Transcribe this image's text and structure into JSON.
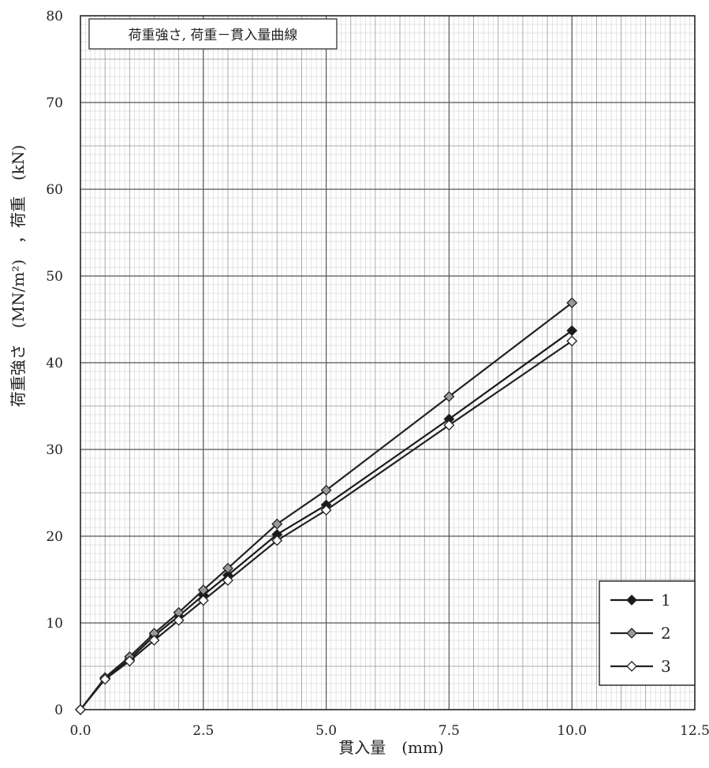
{
  "chart_data": {
    "type": "line",
    "title": "荷重強さ, 荷重－貫入量曲線",
    "xlabel": "貫入量　(mm)",
    "ylabel": "荷重強さ　(MN/m²)　，荷重　(kN)",
    "xlim": [
      0,
      12.5
    ],
    "ylim": [
      0,
      80
    ],
    "x_ticks": [
      "0.0",
      "2.5",
      "5.0",
      "7.5",
      "10.0",
      "12.5"
    ],
    "y_ticks": [
      "0",
      "10",
      "20",
      "30",
      "40",
      "50",
      "60",
      "70",
      "80"
    ],
    "grid": true,
    "legend_position": "bottom-right",
    "x": [
      0,
      0.5,
      1.0,
      1.5,
      2.0,
      2.5,
      3.0,
      4.0,
      5.0,
      7.5,
      10.0
    ],
    "series": [
      {
        "name": "1",
        "marker": "diamond-filled",
        "color": "#1a1a1a",
        "fill": "#1a1a1a",
        "values": [
          0,
          3.6,
          5.8,
          8.5,
          10.8,
          13.2,
          15.5,
          20.2,
          23.6,
          33.5,
          43.7
        ]
      },
      {
        "name": "2",
        "marker": "diamond-gray",
        "color": "#222222",
        "fill": "#9a9a9a",
        "values": [
          0,
          3.7,
          6.1,
          8.8,
          11.2,
          13.8,
          16.3,
          21.4,
          25.3,
          36.1,
          46.9
        ]
      },
      {
        "name": "3",
        "marker": "diamond-open",
        "color": "#222222",
        "fill": "#ffffff",
        "values": [
          0,
          3.5,
          5.6,
          8.0,
          10.3,
          12.6,
          14.9,
          19.5,
          23.0,
          32.8,
          42.5
        ]
      }
    ]
  }
}
